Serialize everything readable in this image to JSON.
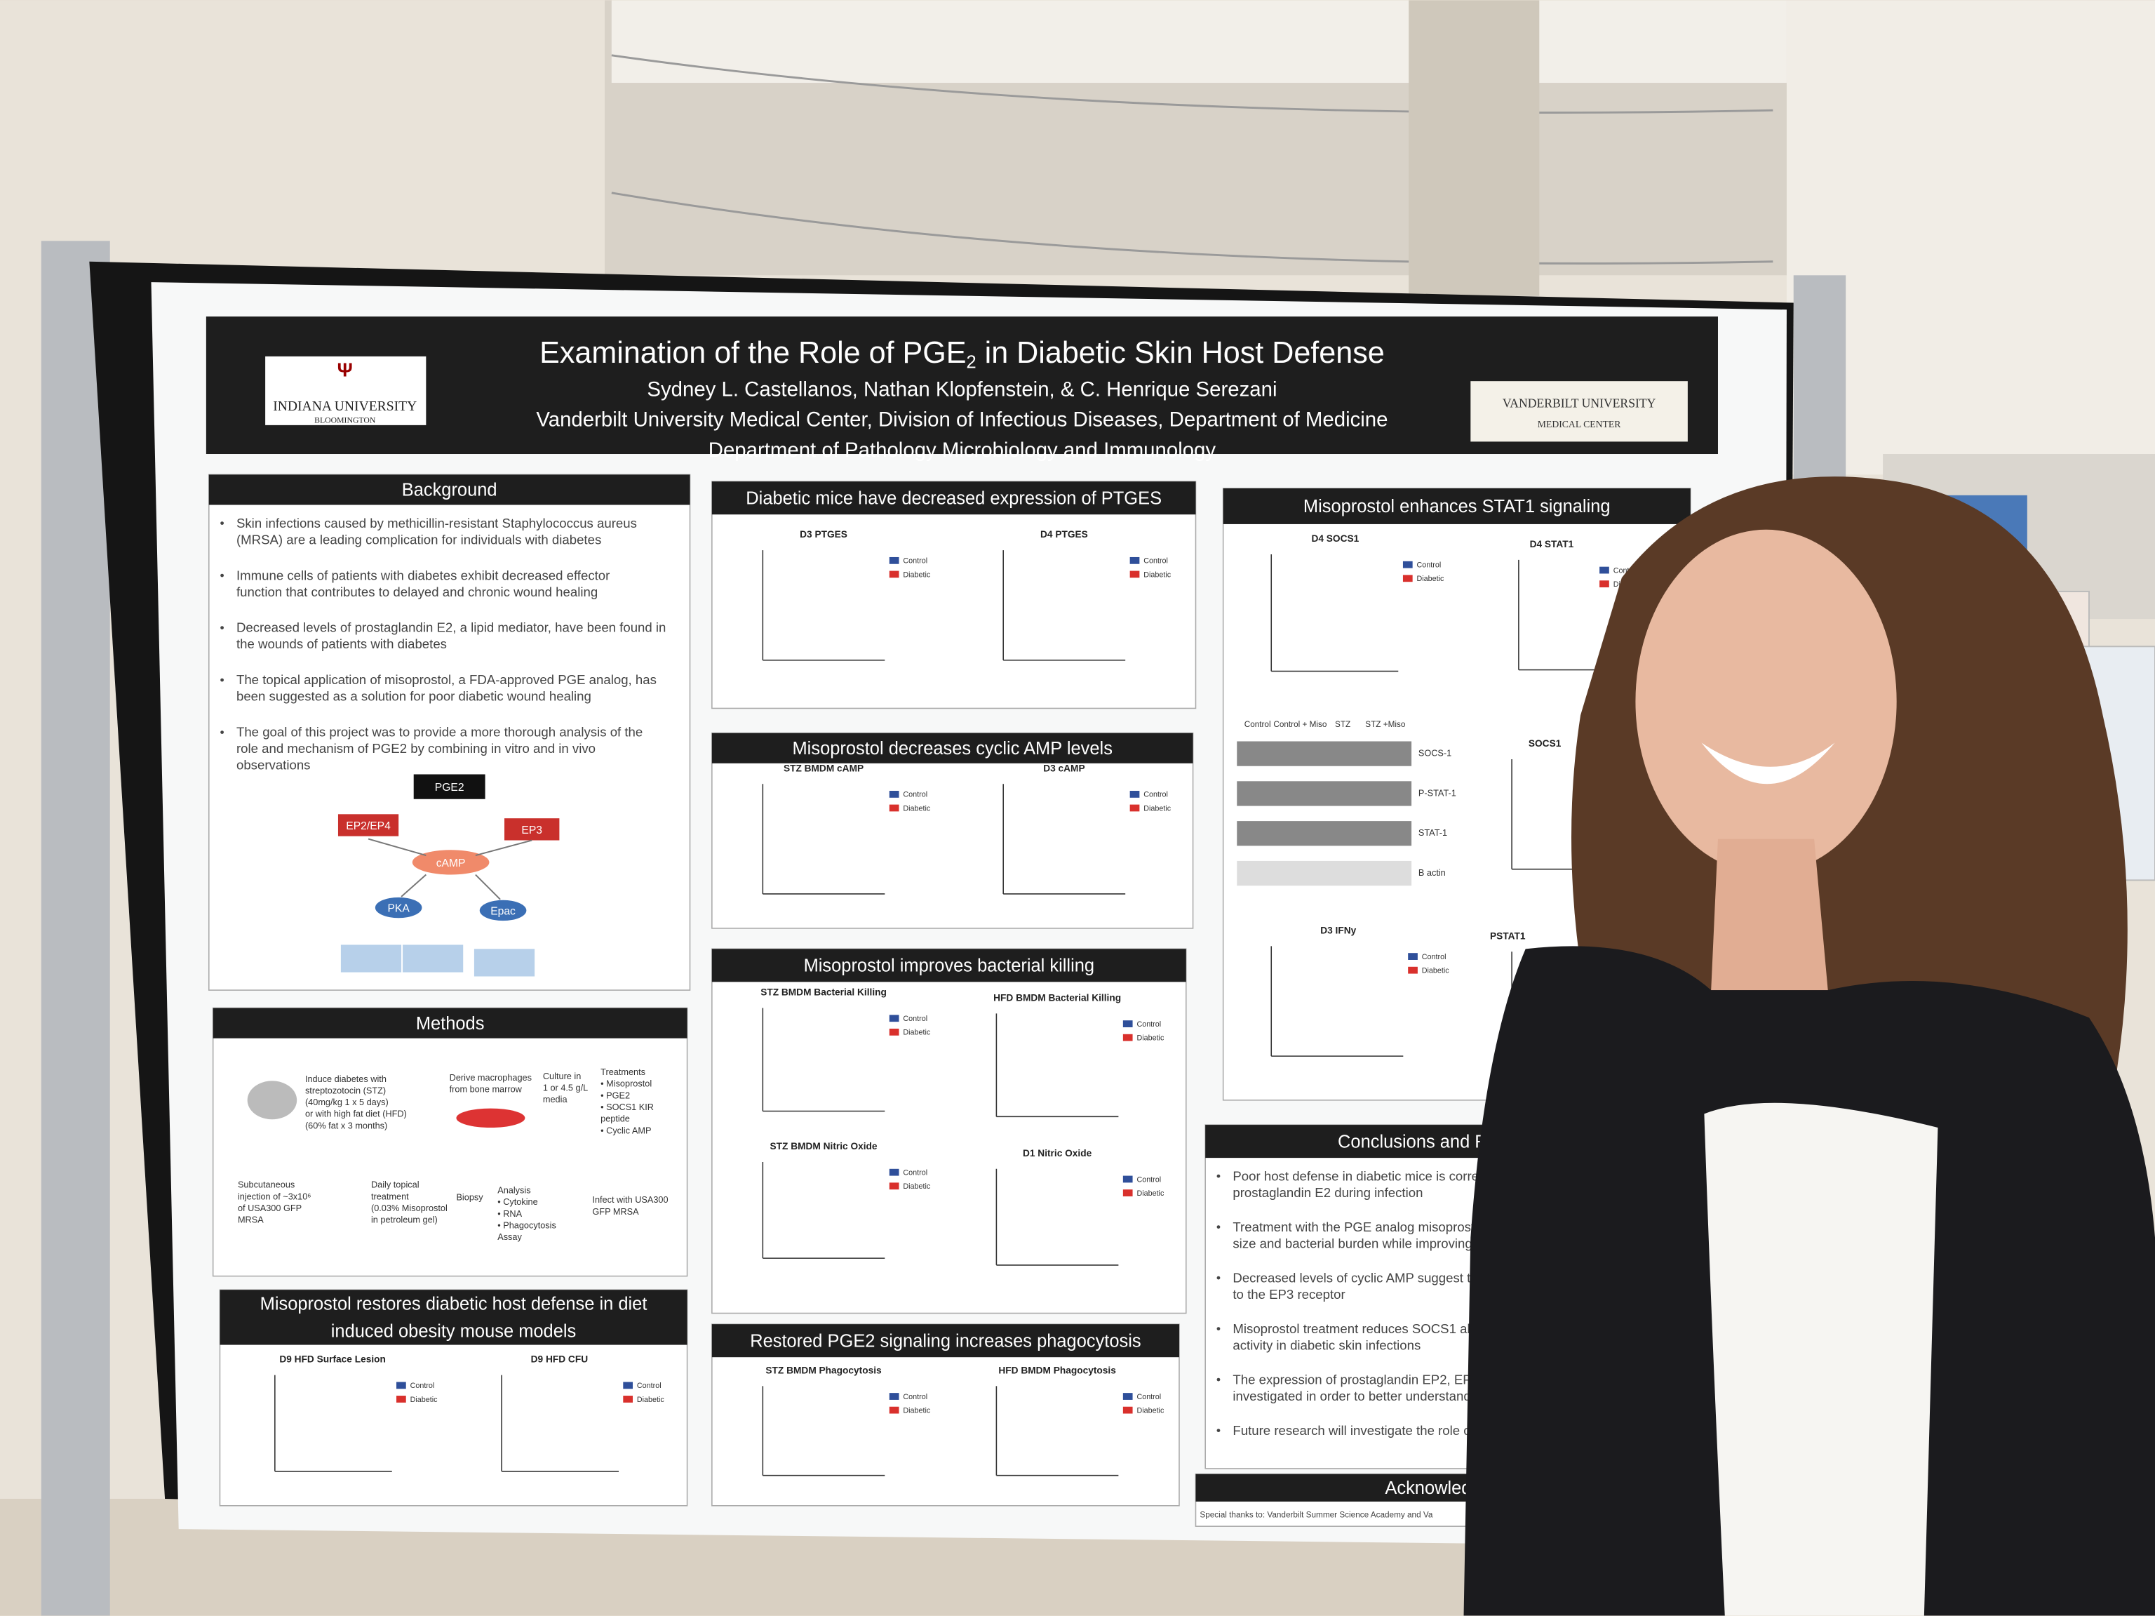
{
  "poster": {
    "title_parts": [
      "Examination of the Role of PGE",
      "2",
      " in Diabetic Skin Host Defense"
    ],
    "authors": "Sydney L. Castellanos, Nathan Klopfenstein, & C. Henrique Serezani",
    "affiliation_1": "Vanderbilt University Medical Center, Division of Infectious Diseases, Department of Medicine",
    "affiliation_2": "Department of Pathology Microbiology and Immunology",
    "logo_left": [
      "INDIANA UNIVERSITY",
      "BLOOMINGTON"
    ],
    "logo_right": [
      "VANDERBILT UNIVERSITY",
      "MEDICAL CENTER"
    ],
    "sections": [
      {
        "heading": [
          "Background"
        ],
        "bullets": [
          [
            "Skin infections caused by methicillin-resistant Staphylococcus aureus",
            "(MRSA) are a leading complication for individuals with diabetes"
          ],
          [
            "Immune cells of patients with diabetes exhibit decreased effector",
            "function that contributes to delayed and chronic wound healing"
          ],
          [
            "Decreased levels of prostaglandin E2, a lipid mediator, have been found in",
            "the wounds of patients with diabetes"
          ],
          [
            "The topical application of misoprostol, a FDA-approved PGE analog, has",
            "been suggested as a solution for poor diabetic wound healing"
          ],
          [
            "The goal of this project was to provide a more thorough analysis of the",
            "role  and mechanism of PGE2 by combining in vitro and in vivo",
            "observations"
          ]
        ]
      },
      {
        "heading": [
          "Methods"
        ]
      },
      {
        "heading": [
          "Misoprostol restores diabetic host defense in diet",
          "induced obesity mouse models"
        ]
      },
      {
        "heading": [
          "Diabetic mice have decreased expression of PTGES"
        ]
      },
      {
        "heading": [
          "Misoprostol decreases cyclic AMP levels"
        ]
      },
      {
        "heading": [
          "Misoprostol improves bacterial killing"
        ]
      },
      {
        "heading": [
          "Restored PGE2 signaling increases phagocytosis"
        ]
      },
      {
        "heading": [
          "Misoprostol enhances STAT1 signaling"
        ]
      },
      {
        "heading": [
          "Conclusions and Future"
        ],
        "bullets": [
          [
            "Poor host defense in diabetic mice is correla",
            "prostaglandin E2 during infection"
          ],
          [
            "Treatment with the PGE analog misoprosto",
            "size and bacterial burden while improving"
          ],
          [
            "Decreased levels of cyclic AMP suggest tha",
            "to the EP3 receptor"
          ],
          [
            "Misoprostol treatment reduces SOCS1 abu",
            "activity in diabetic skin infections"
          ],
          [
            "The expression of prostaglandin EP2, EP3",
            "investigated in order to better understand"
          ],
          [
            "Future research will investigate the role o"
          ]
        ]
      },
      {
        "heading": [
          "Acknowledgen"
        ],
        "bullets": [
          [
            "Special thanks to: Vanderbilt Summer Science Academy and Va"
          ]
        ]
      }
    ],
    "pathway": [
      "PGE2",
      "EP2/EP4",
      "EP3",
      "cAMP",
      "PKA",
      "Epac"
    ],
    "methods_steps": [
      [
        "Induce diabetes with",
        "streptozotocin (STZ)",
        "(40mg/kg 1 x 5 days)",
        "or with high fat diet (HFD)",
        "(60% fat x 3 months)"
      ],
      [
        "Derive macrophages",
        "from bone marrow"
      ],
      [
        "Culture in",
        "1 or 4.5 g/L",
        "media"
      ],
      [
        "Treatments",
        "• Misoprostol",
        "• PGE2",
        "• SOCS1 KIR",
        "  peptide",
        "• Cyclic AMP"
      ],
      [
        "Subcutaneous",
        "injection of ~3x10⁶",
        "of USA300 GFP",
        "MRSA"
      ],
      [
        "Daily topical",
        "treatment",
        "(0.03% Misoprostol",
        "in petroleum gel)"
      ],
      [
        "Biopsy"
      ],
      [
        "Analysis",
        "• Cytokine",
        "• RNA",
        "• Phagocytosis",
        "  Assay"
      ],
      [
        "Infect with USA300",
        "GFP MRSA"
      ]
    ],
    "blot_columns": [
      "Control",
      "Control + Miso",
      "STZ",
      "STZ +Miso"
    ],
    "blot_rows": [
      "SOCS-1",
      "P-STAT-1",
      "STAT-1",
      "B actin"
    ],
    "legend": [
      "Control",
      "Diabetic"
    ],
    "charts": [
      "D3 PTGES",
      "D4 PTGES",
      "STZ BMDM cAMP",
      "D3 cAMP",
      "STZ BMDM Bacterial Killing",
      "HFD BMDM Bacterial Killing",
      "STZ BMDM Nitric Oxide",
      "D1 Nitric Oxide",
      "STZ BMDM Phagocytosis",
      "HFD BMDM Phagocytosis",
      "D9 HFD Surface Lesion",
      "D9 HFD CFU",
      "D4 SOCS1",
      "D4 STAT1",
      "SOCS1",
      "D3 IFNy",
      "PSTAT1"
    ]
  }
}
